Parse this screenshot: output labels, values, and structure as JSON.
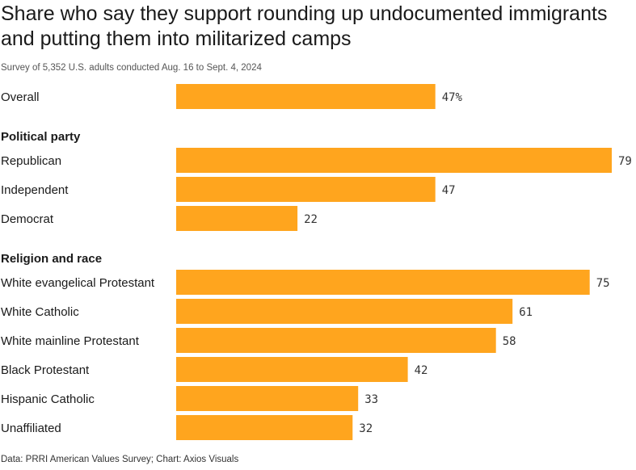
{
  "title": "Share who say they support rounding up undocumented immigrants and putting them into militarized camps",
  "subtitle": "Survey of 5,352 U.S. adults conducted Aug. 16 to Sept. 4, 2024",
  "footer": "Data: PRRI American Values Survey; Chart: Axios Visuals",
  "colors": {
    "bar": "#ffa51e"
  },
  "chart_data": {
    "type": "bar",
    "orientation": "horizontal",
    "unit": "%",
    "xlim": [
      0,
      79
    ],
    "groups": [
      {
        "name": "",
        "categories": [
          "Overall"
        ],
        "values": [
          47
        ],
        "labels": [
          "47%"
        ]
      },
      {
        "name": "Political party",
        "categories": [
          "Republican",
          "Independent",
          "Democrat"
        ],
        "values": [
          79,
          47,
          22
        ],
        "labels": [
          "79",
          "47",
          "22"
        ]
      },
      {
        "name": "Religion and race",
        "categories": [
          "White evangelical Protestant",
          "White Catholic",
          "White mainline Protestant",
          "Black Protestant",
          "Hispanic Catholic",
          "Unaffiliated"
        ],
        "values": [
          75,
          61,
          58,
          42,
          33,
          32
        ],
        "labels": [
          "75",
          "61",
          "58",
          "42",
          "33",
          "32"
        ]
      }
    ]
  }
}
